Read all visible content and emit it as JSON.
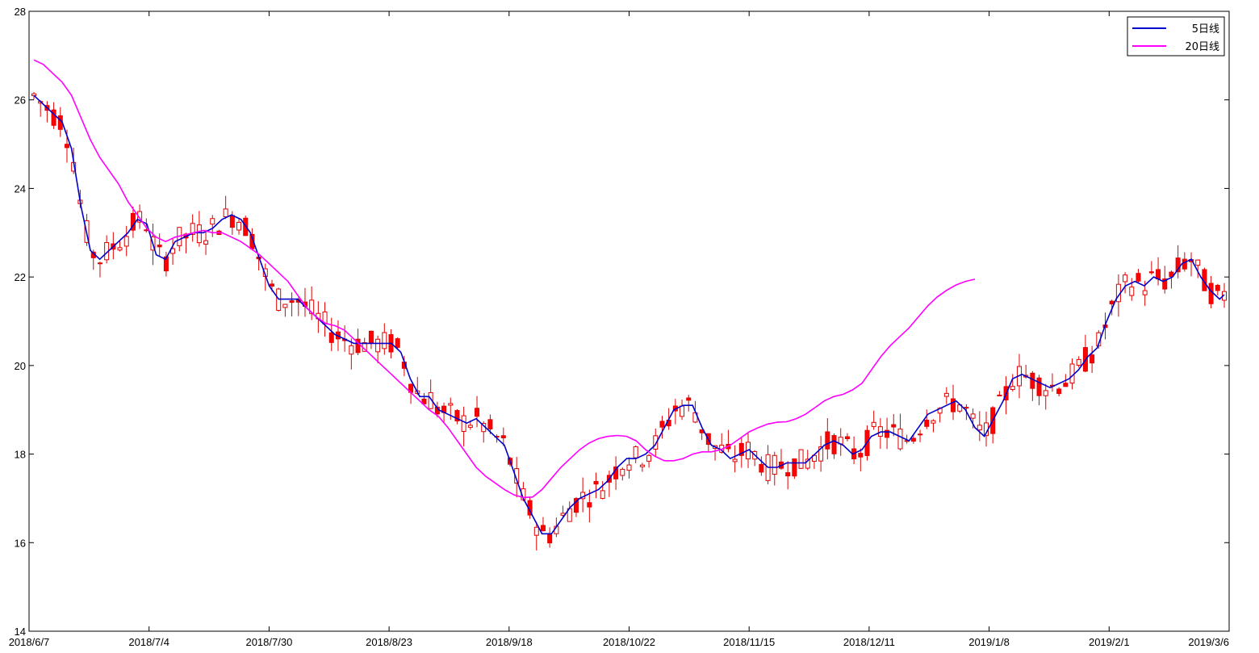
{
  "chart_data": {
    "type": "candlestick",
    "title": "",
    "xlabel": "",
    "ylabel": "",
    "ylim": [
      14,
      28
    ],
    "yticks": [
      14,
      16,
      18,
      20,
      22,
      24,
      26,
      28
    ],
    "xtick_labels": [
      "2018/6/7",
      "2018/7/4",
      "2018/7/30",
      "2018/8/23",
      "2018/9/18",
      "2018/10/22",
      "2018/11/15",
      "2018/12/11",
      "2019/1/8",
      "2019/2/1",
      "2019/3/6"
    ],
    "x_count": 181,
    "grid": false,
    "legend_position": "top-right",
    "colors": {
      "up": "#e00000",
      "down": "#ff0000",
      "ma5": "#0000cc",
      "ma20": "#ff00ff",
      "axis": "#000000"
    },
    "ma_series": [
      {
        "name": "5日线",
        "color": "#0000cc",
        "points": [
          [
            0,
            26.1
          ],
          [
            5,
            25.6
          ],
          [
            6,
            25.5
          ],
          [
            8,
            24.9
          ],
          [
            10,
            23.6
          ],
          [
            12,
            22.6
          ],
          [
            14,
            22.4
          ],
          [
            16,
            22.6
          ],
          [
            18,
            22.8
          ],
          [
            20,
            23.0
          ],
          [
            22,
            23.3
          ],
          [
            24,
            23.2
          ],
          [
            26,
            22.5
          ],
          [
            28,
            22.4
          ],
          [
            30,
            22.8
          ],
          [
            32,
            22.9
          ],
          [
            34,
            23.0
          ],
          [
            36,
            23.0
          ],
          [
            38,
            23.1
          ],
          [
            40,
            23.3
          ],
          [
            42,
            23.4
          ],
          [
            44,
            23.3
          ],
          [
            46,
            23.0
          ],
          [
            48,
            22.4
          ],
          [
            50,
            21.8
          ],
          [
            52,
            21.5
          ],
          [
            54,
            21.5
          ],
          [
            56,
            21.5
          ],
          [
            58,
            21.3
          ],
          [
            60,
            21.1
          ],
          [
            62,
            20.9
          ],
          [
            64,
            20.7
          ],
          [
            66,
            20.6
          ],
          [
            68,
            20.5
          ],
          [
            70,
            20.5
          ],
          [
            72,
            20.5
          ],
          [
            74,
            20.5
          ],
          [
            76,
            20.5
          ],
          [
            78,
            20.3
          ],
          [
            80,
            19.7
          ],
          [
            82,
            19.3
          ],
          [
            84,
            19.3
          ],
          [
            86,
            19.0
          ],
          [
            88,
            18.9
          ],
          [
            90,
            18.8
          ],
          [
            92,
            18.7
          ],
          [
            94,
            18.8
          ],
          [
            96,
            18.6
          ],
          [
            98,
            18.4
          ],
          [
            100,
            18.2
          ],
          [
            102,
            17.6
          ],
          [
            104,
            17.0
          ],
          [
            106,
            16.6
          ],
          [
            108,
            16.2
          ],
          [
            110,
            16.2
          ],
          [
            112,
            16.5
          ],
          [
            114,
            16.8
          ],
          [
            116,
            17.0
          ],
          [
            118,
            17.1
          ],
          [
            120,
            17.2
          ],
          [
            122,
            17.4
          ],
          [
            124,
            17.7
          ],
          [
            126,
            17.9
          ],
          [
            128,
            17.9
          ],
          [
            130,
            18.0
          ],
          [
            132,
            18.2
          ],
          [
            134,
            18.6
          ],
          [
            136,
            19.0
          ],
          [
            138,
            19.1
          ],
          [
            140,
            19.1
          ],
          [
            142,
            18.6
          ],
          [
            144,
            18.2
          ],
          [
            146,
            18.1
          ],
          [
            148,
            17.9
          ],
          [
            150,
            18.0
          ],
          [
            152,
            18.1
          ],
          [
            154,
            17.9
          ],
          [
            156,
            17.7
          ],
          [
            158,
            17.7
          ],
          [
            160,
            17.8
          ],
          [
            162,
            17.8
          ],
          [
            164,
            17.8
          ],
          [
            166,
            18.0
          ],
          [
            168,
            18.2
          ],
          [
            170,
            18.3
          ],
          [
            172,
            18.2
          ],
          [
            174,
            18.0
          ],
          [
            176,
            18.1
          ],
          [
            178,
            18.4
          ],
          [
            180,
            18.5
          ],
          [
            182,
            18.5
          ],
          [
            184,
            18.4
          ],
          [
            186,
            18.3
          ],
          [
            188,
            18.6
          ],
          [
            190,
            18.9
          ],
          [
            192,
            19.0
          ],
          [
            194,
            19.1
          ],
          [
            196,
            19.2
          ],
          [
            198,
            19.0
          ],
          [
            200,
            18.6
          ],
          [
            202,
            18.4
          ],
          [
            204,
            18.8
          ],
          [
            206,
            19.2
          ],
          [
            208,
            19.7
          ],
          [
            210,
            19.8
          ],
          [
            212,
            19.7
          ],
          [
            214,
            19.6
          ],
          [
            216,
            19.5
          ],
          [
            218,
            19.6
          ],
          [
            220,
            19.7
          ],
          [
            222,
            19.9
          ],
          [
            224,
            20.2
          ],
          [
            226,
            20.4
          ],
          [
            228,
            21.0
          ],
          [
            230,
            21.5
          ],
          [
            232,
            21.8
          ],
          [
            234,
            21.9
          ],
          [
            236,
            21.8
          ],
          [
            238,
            22.0
          ],
          [
            240,
            21.9
          ],
          [
            242,
            22.0
          ],
          [
            244,
            22.3
          ],
          [
            246,
            22.4
          ],
          [
            248,
            22.0
          ],
          [
            250,
            21.7
          ],
          [
            252,
            21.5
          ],
          [
            253,
            21.6
          ]
        ]
      },
      {
        "name": "20日线",
        "color": "#ff00ff",
        "points": [
          [
            0,
            26.9
          ],
          [
            2,
            26.8
          ],
          [
            4,
            26.6
          ],
          [
            6,
            26.4
          ],
          [
            8,
            26.1
          ],
          [
            10,
            25.6
          ],
          [
            12,
            25.1
          ],
          [
            14,
            24.7
          ],
          [
            16,
            24.4
          ],
          [
            18,
            24.1
          ],
          [
            20,
            23.7
          ],
          [
            22,
            23.4
          ],
          [
            24,
            23.1
          ],
          [
            26,
            22.9
          ],
          [
            28,
            22.8
          ],
          [
            30,
            22.9
          ],
          [
            32,
            22.95
          ],
          [
            34,
            23.0
          ],
          [
            36,
            23.05
          ],
          [
            38,
            23.0
          ],
          [
            40,
            23.0
          ],
          [
            42,
            22.9
          ],
          [
            44,
            22.8
          ],
          [
            46,
            22.65
          ],
          [
            48,
            22.5
          ],
          [
            50,
            22.3
          ],
          [
            52,
            22.1
          ],
          [
            54,
            21.9
          ],
          [
            56,
            21.6
          ],
          [
            58,
            21.3
          ],
          [
            60,
            21.1
          ],
          [
            62,
            20.95
          ],
          [
            64,
            20.9
          ],
          [
            66,
            20.8
          ],
          [
            68,
            20.6
          ],
          [
            70,
            20.4
          ],
          [
            72,
            20.2
          ],
          [
            74,
            20.0
          ],
          [
            76,
            19.8
          ],
          [
            78,
            19.6
          ],
          [
            80,
            19.4
          ],
          [
            82,
            19.2
          ],
          [
            84,
            19.0
          ],
          [
            86,
            18.85
          ],
          [
            88,
            18.6
          ],
          [
            90,
            18.3
          ],
          [
            92,
            18.0
          ],
          [
            94,
            17.7
          ],
          [
            96,
            17.5
          ],
          [
            98,
            17.35
          ],
          [
            100,
            17.2
          ],
          [
            102,
            17.08
          ],
          [
            104,
            17.02
          ],
          [
            106,
            17.03
          ],
          [
            108,
            17.2
          ],
          [
            110,
            17.45
          ],
          [
            112,
            17.7
          ],
          [
            114,
            17.9
          ],
          [
            116,
            18.1
          ],
          [
            118,
            18.25
          ],
          [
            120,
            18.35
          ],
          [
            122,
            18.4
          ],
          [
            124,
            18.42
          ],
          [
            126,
            18.4
          ],
          [
            128,
            18.3
          ],
          [
            130,
            18.1
          ],
          [
            132,
            17.95
          ],
          [
            134,
            17.85
          ],
          [
            136,
            17.85
          ],
          [
            138,
            17.9
          ],
          [
            140,
            18.0
          ],
          [
            142,
            18.05
          ],
          [
            144,
            18.05
          ],
          [
            146,
            18.1
          ],
          [
            148,
            18.2
          ],
          [
            150,
            18.35
          ],
          [
            152,
            18.5
          ],
          [
            154,
            18.6
          ],
          [
            156,
            18.68
          ],
          [
            158,
            18.72
          ],
          [
            160,
            18.73
          ],
          [
            162,
            18.8
          ],
          [
            164,
            18.9
          ],
          [
            166,
            19.05
          ],
          [
            168,
            19.2
          ],
          [
            170,
            19.3
          ],
          [
            172,
            19.35
          ],
          [
            174,
            19.45
          ],
          [
            176,
            19.6
          ],
          [
            178,
            19.9
          ],
          [
            180,
            20.2
          ],
          [
            182,
            20.45
          ],
          [
            184,
            20.65
          ],
          [
            186,
            20.85
          ],
          [
            188,
            21.1
          ],
          [
            190,
            21.35
          ],
          [
            192,
            21.55
          ],
          [
            194,
            21.7
          ],
          [
            196,
            21.82
          ],
          [
            198,
            21.9
          ],
          [
            200,
            21.95
          ]
        ]
      }
    ],
    "legend": [
      {
        "label": "5日线",
        "color": "#0000cc"
      },
      {
        "label": "20日线",
        "color": "#ff00ff"
      }
    ]
  }
}
